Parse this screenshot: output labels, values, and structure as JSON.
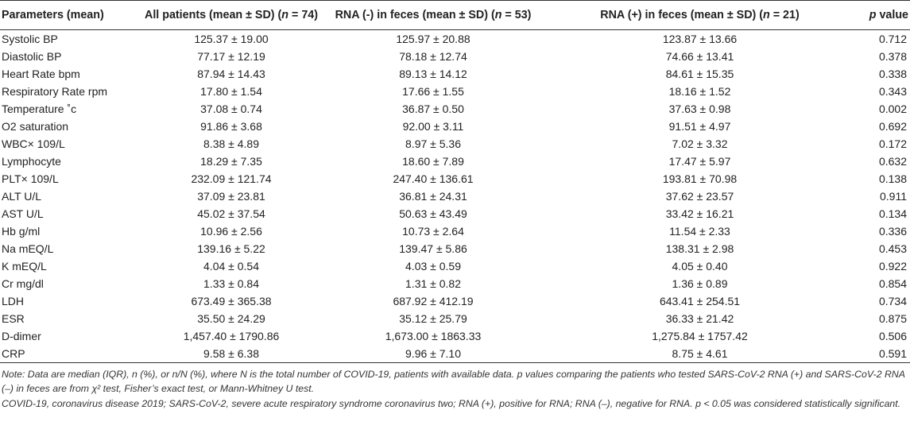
{
  "table": {
    "headers": {
      "parameters": "Parameters (mean)",
      "all_prefix": "All patients (mean ± SD) (",
      "all_n": "n",
      "all_suffix": " = 74)",
      "neg_prefix": "RNA (-) in feces (mean ± SD) (",
      "neg_n": "n",
      "neg_suffix": " = 53)",
      "pos_prefix": "RNA (+) in feces (mean ± SD) (",
      "pos_n": "n",
      "pos_suffix": " = 21)",
      "p_italic": "p",
      "p_suffix": " value"
    },
    "rows": [
      {
        "param": "Systolic BP",
        "all": "125.37 ± 19.00",
        "neg": "125.97 ± 20.88",
        "pos": "123.87 ± 13.66",
        "p": "0.712"
      },
      {
        "param": "Diastolic BP",
        "all": "77.17 ± 12.19",
        "neg": "78.18 ± 12.74",
        "pos": "74.66 ± 13.41",
        "p": "0.378"
      },
      {
        "param": "Heart Rate bpm",
        "all": "87.94 ± 14.43",
        "neg": "89.13 ± 14.12",
        "pos": "84.61 ± 15.35",
        "p": "0.338"
      },
      {
        "param": "Respiratory Rate rpm",
        "all": "17.80 ± 1.54",
        "neg": "17.66 ± 1.55",
        "pos": "18.16 ± 1.52",
        "p": "0.343"
      },
      {
        "param": "Temperature ˚c",
        "all": "37.08 ± 0.74",
        "neg": "36.87 ± 0.50",
        "pos": "37.63 ± 0.98",
        "p": "0.002"
      },
      {
        "param": "O2 saturation",
        "all": "91.86 ± 3.68",
        "neg": "92.00 ± 3.11",
        "pos": "91.51 ± 4.97",
        "p": "0.692"
      },
      {
        "param": "WBC× 109/L",
        "all": "8.38 ± 4.89",
        "neg": "8.97 ± 5.36",
        "pos": "7.02 ± 3.32",
        "p": "0.172"
      },
      {
        "param": "Lymphocyte",
        "all": "18.29 ± 7.35",
        "neg": "18.60 ± 7.89",
        "pos": "17.47 ± 5.97",
        "p": "0.632"
      },
      {
        "param": "PLT× 109/L",
        "all": "232.09 ± 121.74",
        "neg": "247.40 ± 136.61",
        "pos": "193.81 ± 70.98",
        "p": "0.138"
      },
      {
        "param": "ALT U/L",
        "all": "37.09 ± 23.81",
        "neg": "36.81 ± 24.31",
        "pos": "37.62 ± 23.57",
        "p": "0.911"
      },
      {
        "param": "AST U/L",
        "all": "45.02 ± 37.54",
        "neg": "50.63 ± 43.49",
        "pos": "33.42 ± 16.21",
        "p": "0.134"
      },
      {
        "param": "Hb g/ml",
        "all": "10.96 ± 2.56",
        "neg": "10.73 ± 2.64",
        "pos": "11.54 ± 2.33",
        "p": "0.336"
      },
      {
        "param": "Na mEQ/L",
        "all": "139.16 ± 5.22",
        "neg": "139.47 ± 5.86",
        "pos": "138.31 ± 2.98",
        "p": "0.453"
      },
      {
        "param": "K mEQ/L",
        "all": "4.04 ± 0.54",
        "neg": "4.03 ± 0.59",
        "pos": "4.05 ± 0.40",
        "p": "0.922"
      },
      {
        "param": "Cr mg/dl",
        "all": "1.33 ± 0.84",
        "neg": "1.31 ± 0.82",
        "pos": "1.36 ± 0.89",
        "p": "0.854"
      },
      {
        "param": "LDH",
        "all": "673.49 ± 365.38",
        "neg": "687.92 ± 412.19",
        "pos": "643.41 ± 254.51",
        "p": "0.734"
      },
      {
        "param": "ESR",
        "all": "35.50 ± 24.29",
        "neg": "35.12 ± 25.79",
        "pos": "36.33 ± 21.42",
        "p": "0.875"
      },
      {
        "param": "D-dimer",
        "all": "1,457.40 ± 1790.86",
        "neg": "1,673.00 ± 1863.33",
        "pos": "1,275.84 ± 1757.42",
        "p": "0.506"
      },
      {
        "param": "CRP",
        "all": "9.58 ± 6.38",
        "neg": "9.96 ± 7.10",
        "pos": "8.75 ± 4.61",
        "p": "0.591"
      }
    ]
  },
  "notes": {
    "note1": "Note: Data are median (IQR), n (%), or n/N (%), where N is the total number of COVID-19, patients with available data. p values comparing the patients who tested SARS-CoV-2 RNA (+) and SARS-CoV-2 RNA (–) in feces are from χ² test, Fisher’s exact test, or Mann-Whitney U test.",
    "note2": "COVID-19, coronavirus disease 2019; SARS-CoV-2, severe acute respiratory syndrome coronavirus two; RNA (+), positive for RNA; RNA (–), negative for RNA. p < 0.05 was considered statistically significant."
  }
}
